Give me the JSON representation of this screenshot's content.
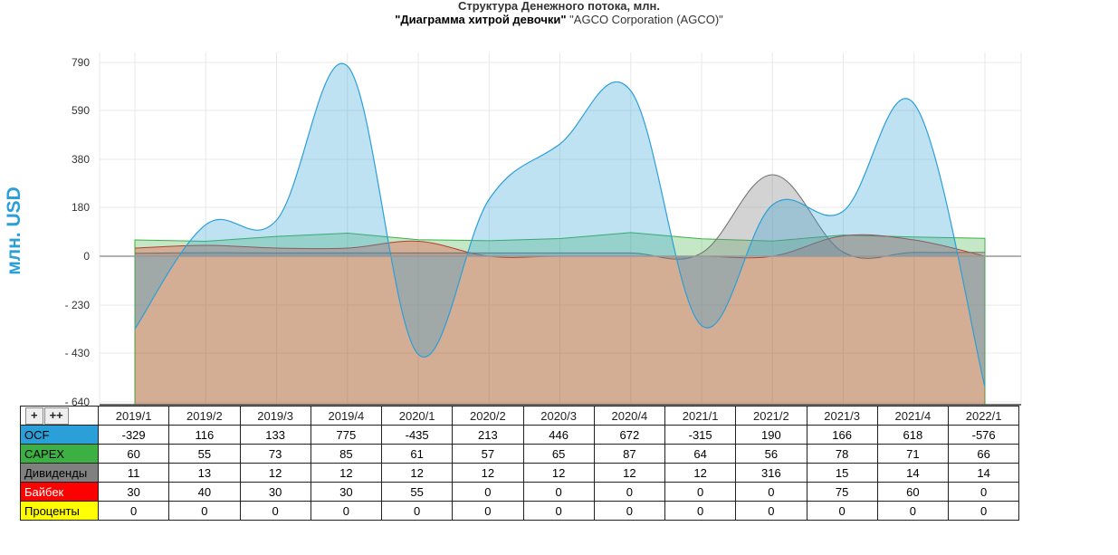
{
  "title": {
    "line1": "Структура Денежного потока, млн.",
    "line2_bold": "\"Диаграмма хитрой девочки\"",
    "line2_rest": " \"AGCO Corporation (AGCO)\""
  },
  "controls": {
    "zoom_in": "+",
    "zoom_more": "++"
  },
  "colors": {
    "ocf": "#2b9fd8",
    "capex": "#3cb043",
    "dividends": "#808080",
    "buyback": "#ff0000",
    "interest": "#ffff00",
    "axis_label": "#2b9fd8"
  },
  "chart_data": {
    "type": "area",
    "title": "Структура Денежного потока, млн.",
    "subtitle": "\"Диаграмма хитрой девочки\" \"AGCO Corporation (AGCO)\"",
    "ylabel": "млн. USD",
    "xlabel": "",
    "ylim": [
      -640,
      790
    ],
    "yticks": [
      "790",
      "590",
      "380",
      "180",
      "0",
      "- 230",
      "- 430",
      "- 640"
    ],
    "ytick_values": [
      790,
      590,
      380,
      180,
      0,
      -230,
      -430,
      -640
    ],
    "categories": [
      "2019/1",
      "2019/2",
      "2019/3",
      "2019/4",
      "2020/1",
      "2020/2",
      "2020/3",
      "2020/4",
      "2021/1",
      "2021/2",
      "2021/3",
      "2021/4",
      "2022/1"
    ],
    "grid": true,
    "series": [
      {
        "key": "ocf",
        "name": "OCF",
        "values": [
          -329,
          116,
          133,
          775,
          -435,
          213,
          446,
          672,
          -315,
          190,
          166,
          618,
          -576
        ]
      },
      {
        "key": "capex",
        "name": "CAPEX",
        "values": [
          60,
          55,
          73,
          85,
          61,
          57,
          65,
          87,
          64,
          56,
          78,
          71,
          66
        ]
      },
      {
        "key": "dividends",
        "name": "Дивиденды",
        "values": [
          11,
          13,
          12,
          12,
          12,
          12,
          12,
          12,
          12,
          316,
          15,
          14,
          14
        ]
      },
      {
        "key": "buyback",
        "name": "Байбек",
        "values": [
          30,
          40,
          30,
          30,
          55,
          0,
          0,
          0,
          0,
          0,
          75,
          60,
          0
        ]
      },
      {
        "key": "interest",
        "name": "Проценты",
        "values": [
          0,
          0,
          0,
          0,
          0,
          0,
          0,
          0,
          0,
          0,
          0,
          0,
          0
        ]
      }
    ]
  }
}
